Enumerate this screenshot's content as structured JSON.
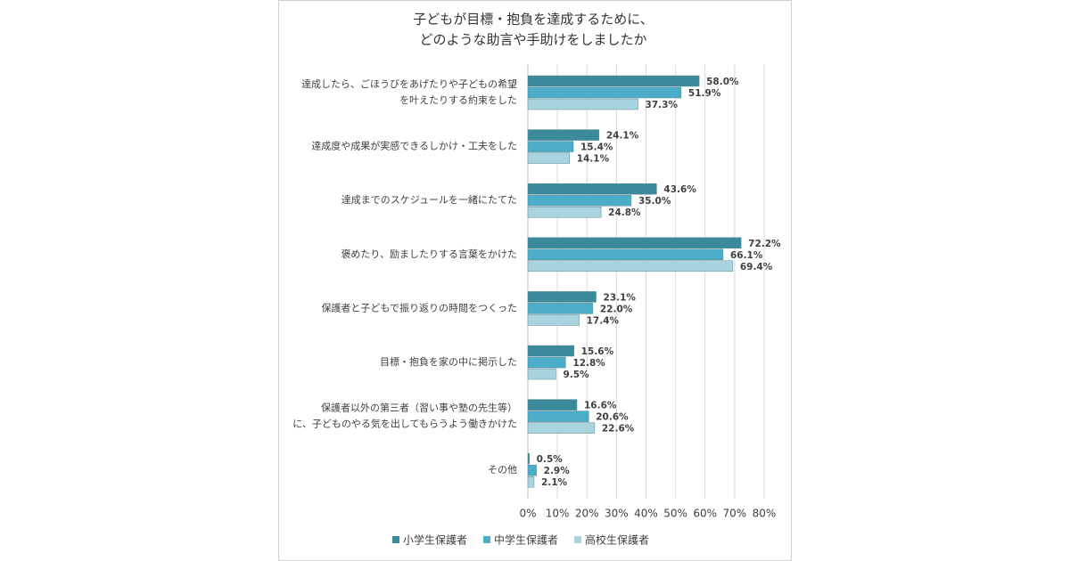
{
  "chart_data": {
    "type": "bar",
    "orientation": "horizontal",
    "title": [
      "子どもが目標・抱負を達成するために、",
      "どのような助言や手助けをしましたか"
    ],
    "categories": [
      [
        "達成したら、ごほうびをあげたりや子どもの希望",
        "を叶えたりする約束をした"
      ],
      [
        "達成度や成果が実感できるしかけ・工夫をした"
      ],
      [
        "達成までのスケジュールを一緒にたてた"
      ],
      [
        "褒めたり、励ましたりする言葉をかけた"
      ],
      [
        "保護者と子どもで振り返りの時間をつくった"
      ],
      [
        "目標・抱負を家の中に掲示した"
      ],
      [
        "保護者以外の第三者（習い事や塾の先生等）",
        "に、子どものやる気を出してもらうよう働きかけた"
      ],
      [
        "その他"
      ]
    ],
    "series": [
      {
        "name": "小学生保護者",
        "color": "#3b8a9b",
        "values": [
          58.0,
          24.1,
          43.6,
          72.2,
          23.1,
          15.6,
          16.6,
          0.5
        ],
        "value_labels": [
          "58.0%",
          "24.1%",
          "43.6%",
          "72.2%",
          "23.1%",
          "15.6%",
          "16.6%",
          "0.5%"
        ]
      },
      {
        "name": "中学生保護者",
        "color": "#4badc9",
        "values": [
          51.9,
          15.4,
          35.0,
          66.1,
          22.0,
          12.8,
          20.6,
          2.9
        ],
        "value_labels": [
          "51.9%",
          "15.4%",
          "35.0%",
          "66.1%",
          "22.0%",
          "12.8%",
          "20.6%",
          "2.9%"
        ]
      },
      {
        "name": "高校生保護者",
        "color": "#a9d3df",
        "values": [
          37.3,
          14.1,
          24.8,
          69.4,
          17.4,
          9.5,
          22.6,
          2.1
        ],
        "value_labels": [
          "37.3%",
          "14.1%",
          "24.8%",
          "69.4%",
          "17.4%",
          "9.5%",
          "22.6%",
          "2.1%"
        ]
      }
    ],
    "xlim": [
      0,
      80
    ],
    "xticks": [
      {
        "value": 0,
        "label": "0%"
      },
      {
        "value": 10,
        "label": "10%"
      },
      {
        "value": 20,
        "label": "20%"
      },
      {
        "value": 30,
        "label": "30%"
      },
      {
        "value": 40,
        "label": "40%"
      },
      {
        "value": 50,
        "label": "50%"
      },
      {
        "value": 60,
        "label": "60%"
      },
      {
        "value": 70,
        "label": "70%"
      },
      {
        "value": 80,
        "label": "80%"
      }
    ],
    "grid": true,
    "legend": "bottom"
  }
}
